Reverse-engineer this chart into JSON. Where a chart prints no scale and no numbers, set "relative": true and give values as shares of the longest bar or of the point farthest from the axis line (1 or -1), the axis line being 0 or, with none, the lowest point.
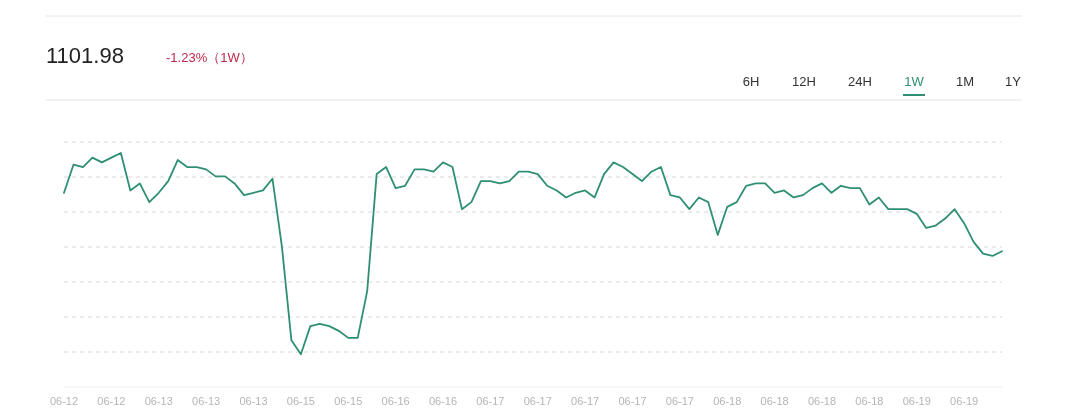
{
  "chart_data": {
    "type": "line",
    "title": "1101.98",
    "subtitle": "-1.23%（1W）",
    "annotations": [
      "6H",
      "12H",
      "24H",
      "1W",
      "1M",
      "1Y"
    ],
    "relative": true,
    "grid": "y",
    "marker": "none",
    "line_style": "solid",
    "categories": [
      "06-12",
      null,
      null,
      null,
      null,
      "06-12",
      null,
      null,
      null,
      null,
      "06-13",
      null,
      null,
      null,
      null,
      "06-13",
      null,
      null,
      null,
      null,
      "06-13",
      null,
      null,
      null,
      null,
      "06-15",
      null,
      null,
      null,
      null,
      "06-15",
      null,
      null,
      null,
      null,
      "06-16",
      null,
      null,
      null,
      null,
      "06-16",
      null,
      null,
      null,
      null,
      "06-17",
      null,
      null,
      null,
      null,
      "06-17",
      null,
      null,
      null,
      null,
      "06-17",
      null,
      null,
      null,
      null,
      "06-17",
      null,
      null,
      null,
      null,
      "06-17",
      null,
      null,
      null,
      null,
      "06-18",
      null,
      null,
      null,
      null,
      "06-18",
      null,
      null,
      null,
      null,
      "06-18",
      null,
      null,
      null,
      null,
      "06-18",
      null,
      null,
      null,
      null,
      "06-19",
      null,
      null,
      null,
      null,
      "06-19",
      null,
      null,
      null,
      null
    ],
    "series": [
      {
        "color": "#2f8f74",
        "values": [
          0.83,
          0.95,
          0.94,
          0.98,
          0.96,
          0.98,
          1,
          0.84,
          0.87,
          0.79,
          0.83,
          0.88,
          0.97,
          0.94,
          0.94,
          0.93,
          0.9,
          0.9,
          0.87,
          0.82,
          0.83,
          0.84,
          0.89,
          0.6,
          0.2,
          0.14,
          0.26,
          0.27,
          0.26,
          0.24,
          0.21,
          0.21,
          0.41,
          0.91,
          0.94,
          0.85,
          0.86,
          0.93,
          0.93,
          0.92,
          0.96,
          0.94,
          0.76,
          0.79,
          0.88,
          0.88,
          0.87,
          0.88,
          0.92,
          0.92,
          0.91,
          0.86,
          0.84,
          0.81,
          0.83,
          0.84,
          0.81,
          0.91,
          0.96,
          0.94,
          0.91,
          0.88,
          0.92,
          0.94,
          0.82,
          0.81,
          0.76,
          0.81,
          0.79,
          0.65,
          0.77,
          0.79,
          0.86,
          0.87,
          0.87,
          0.83,
          0.84,
          0.81,
          0.82,
          0.85,
          0.87,
          0.83,
          0.86,
          0.85,
          0.85,
          0.78,
          0.81,
          0.76,
          0.76,
          0.76,
          0.74,
          0.68,
          0.69,
          0.72,
          0.76,
          0.7,
          0.62,
          0.57,
          0.56,
          0.58
        ]
      }
    ]
  }
}
